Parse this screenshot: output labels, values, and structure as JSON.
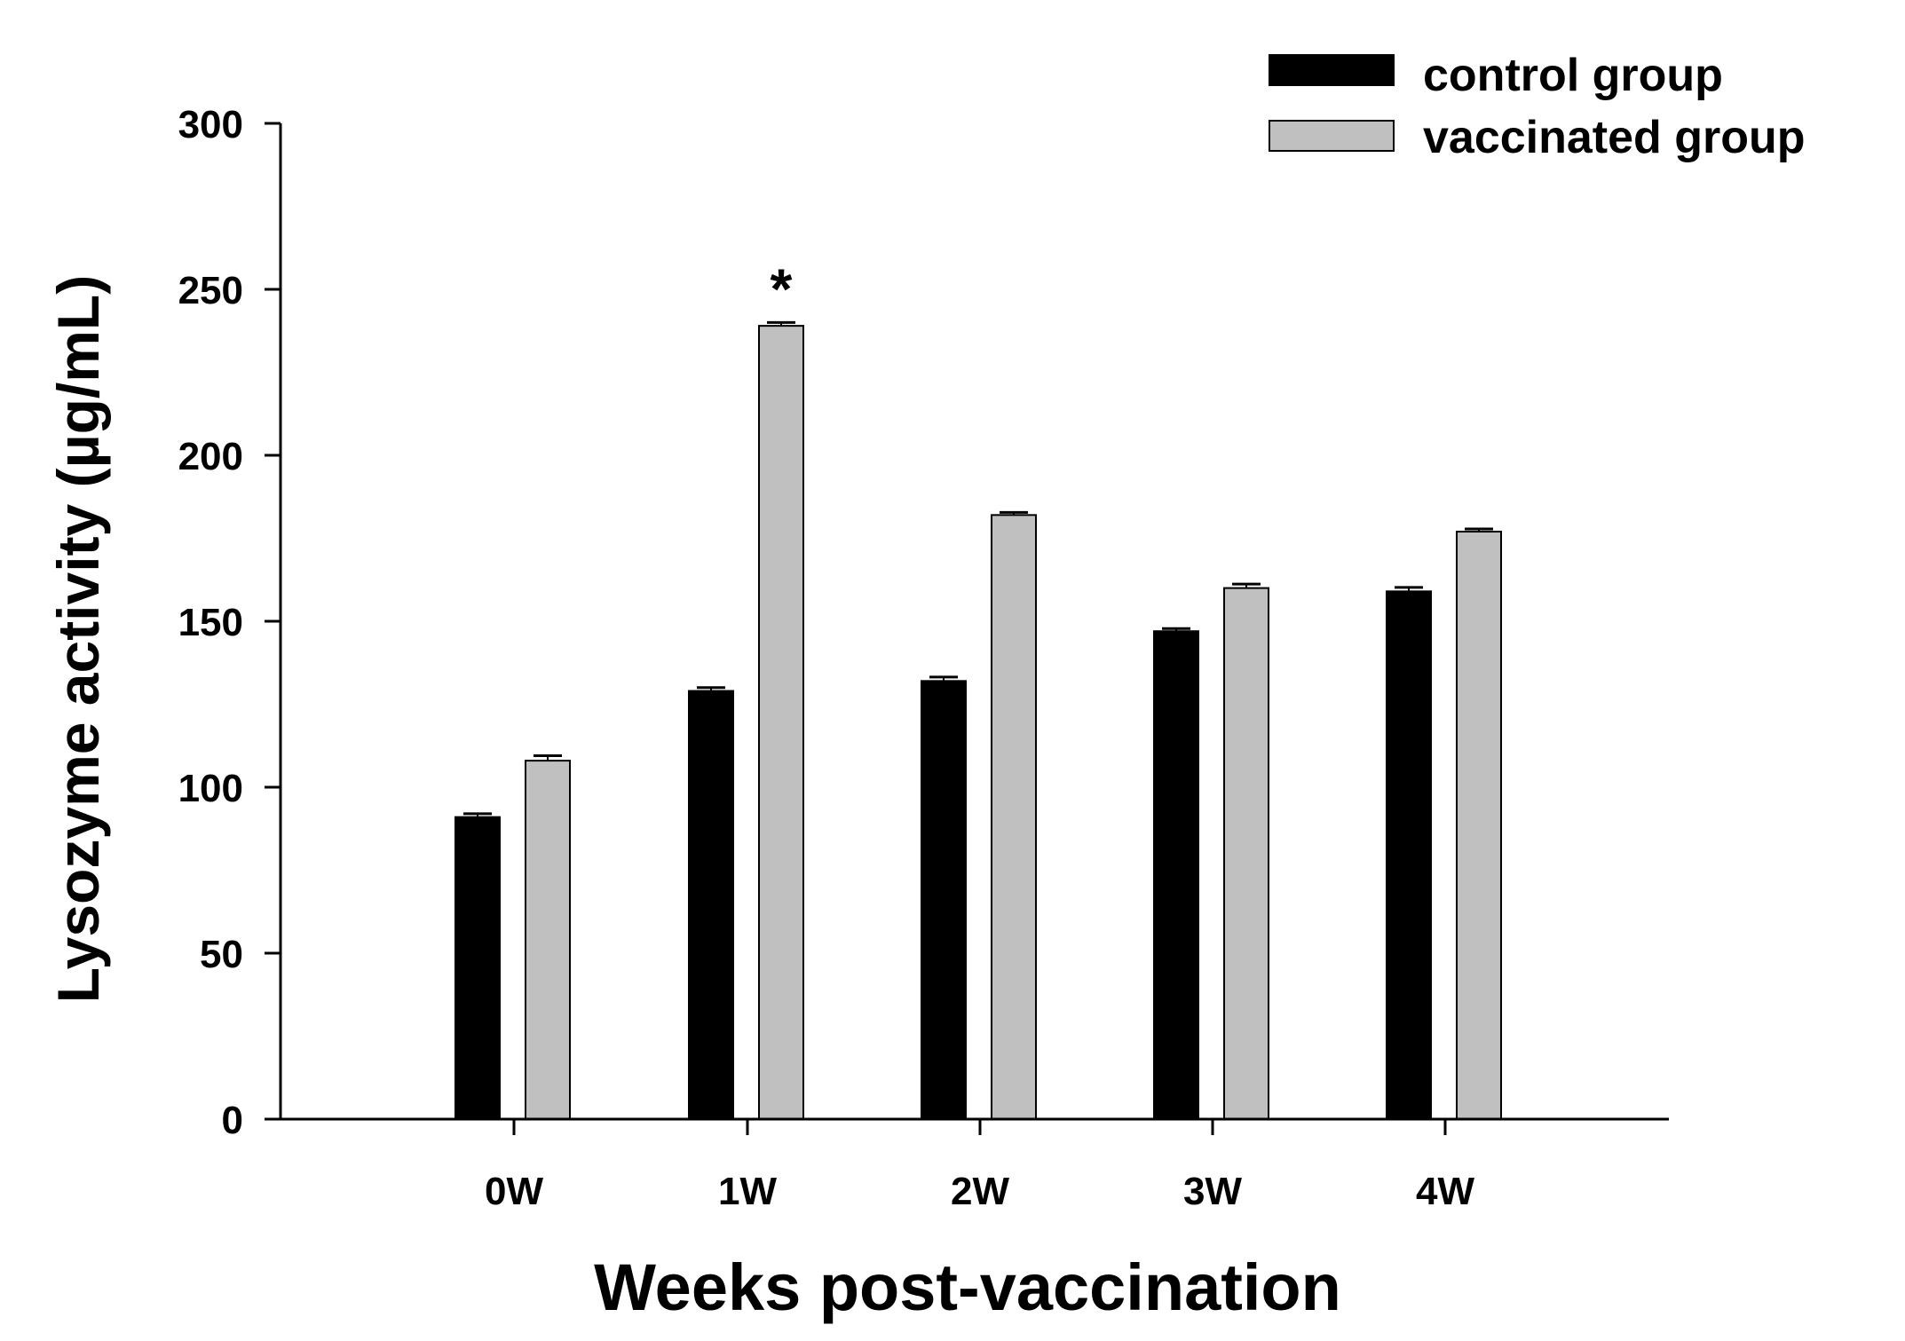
{
  "chart_data": {
    "type": "bar",
    "title": "",
    "xlabel": "Weeks post-vaccination",
    "ylabel": "Lysozyme activity (µg/mL)",
    "ylim": [
      0,
      300
    ],
    "yticks": [
      "0",
      "50",
      "100",
      "150",
      "200",
      "250",
      "300"
    ],
    "categories": [
      "0W",
      "1W",
      "2W",
      "3W",
      "4W"
    ],
    "series": [
      {
        "name": "control group",
        "color": "#000000",
        "values": [
          91,
          129,
          132,
          147,
          159
        ],
        "errors": [
          1,
          1,
          1.2,
          0.8,
          1.2
        ]
      },
      {
        "name": "vaccinated group",
        "color": "#c0c0c0",
        "values": [
          108,
          239,
          182,
          160,
          177
        ],
        "errors": [
          1.5,
          1,
          0.8,
          1.2,
          0.8
        ]
      }
    ],
    "annotations": [
      {
        "text": "*",
        "category": "1W",
        "series": "vaccinated group"
      }
    ],
    "legend_position": "top-right",
    "grid": false
  }
}
